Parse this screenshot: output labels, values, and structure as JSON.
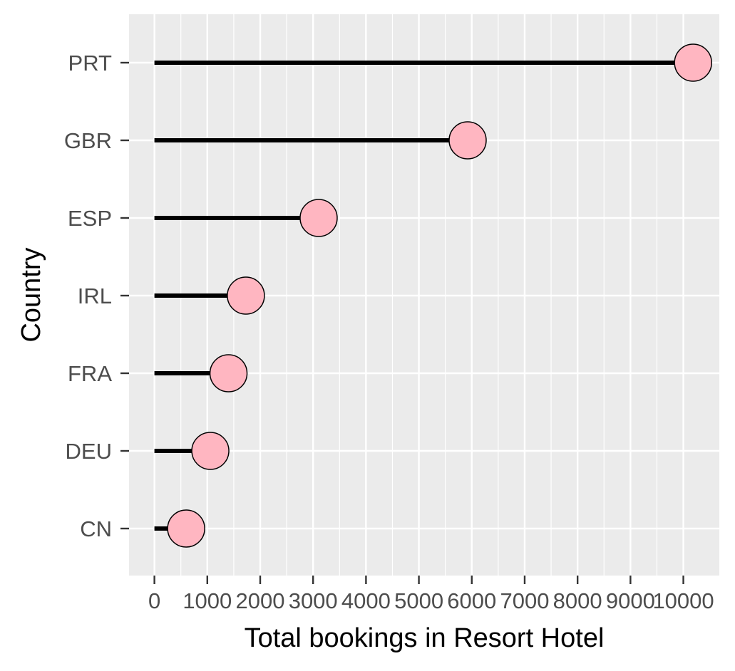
{
  "chart_data": {
    "type": "lollipop",
    "xlabel": "Total bookings in Resort Hotel",
    "ylabel": "Country",
    "categories": [
      "PRT",
      "GBR",
      "ESP",
      "IRL",
      "FRA",
      "DEU",
      "CN"
    ],
    "values": [
      10184,
      5922,
      3105,
      1729,
      1401,
      1057,
      600
    ],
    "x_ticks": [
      0,
      1000,
      2000,
      3000,
      4000,
      5000,
      6000,
      7000,
      8000,
      9000,
      10000
    ],
    "x_tick_labels": [
      "0",
      "1000",
      "2000",
      "3000",
      "4000",
      "5000",
      "6000",
      "7000",
      "8000",
      "9000",
      "10000"
    ],
    "xlim": [
      -480,
      10680
    ],
    "grid": true,
    "colors": {
      "panel_background": "#ebebeb",
      "grid": "#ffffff",
      "segment": "#000000",
      "point_fill": "#ffb6c1",
      "point_stroke": "#000000"
    }
  }
}
